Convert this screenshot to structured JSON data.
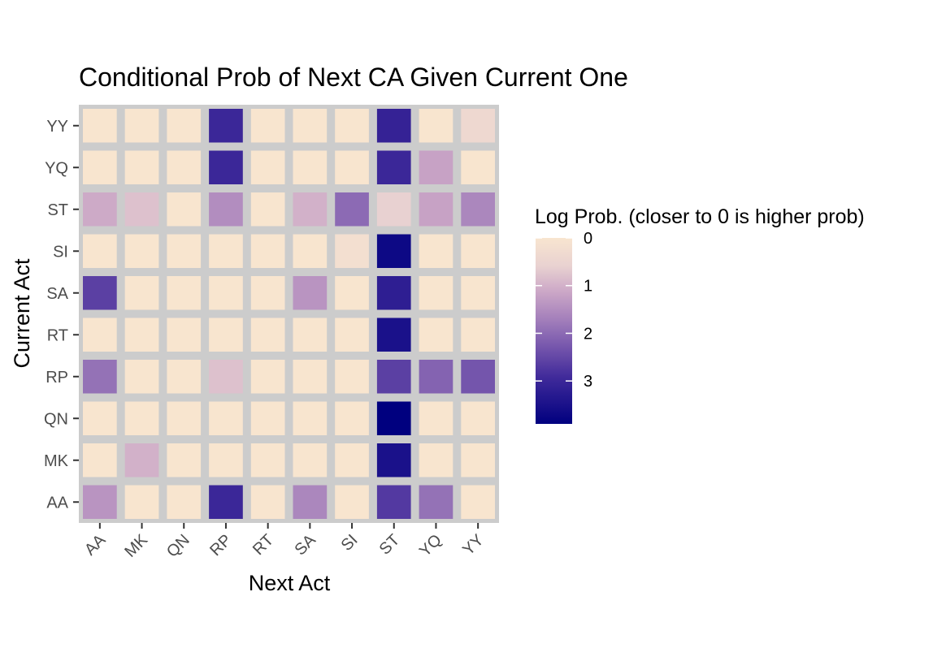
{
  "chart_data": {
    "type": "heatmap",
    "title": "Conditional Prob of Next CA Given Current One",
    "xlabel": "Next Act",
    "ylabel": "Current Act",
    "x_categories": [
      "AA",
      "MK",
      "QN",
      "RP",
      "RT",
      "SA",
      "SI",
      "ST",
      "YQ",
      "YY"
    ],
    "y_categories": [
      "AA",
      "MK",
      "QN",
      "RP",
      "RT",
      "SA",
      "SI",
      "ST",
      "YQ",
      "YY"
    ],
    "values": [
      [
        1.4,
        0.0,
        0.0,
        3.0,
        0.0,
        1.6,
        0.0,
        2.7,
        1.9,
        0.0
      ],
      [
        0.0,
        1.0,
        0.0,
        0.0,
        0.0,
        0.0,
        0.0,
        3.5,
        0.0,
        0.0
      ],
      [
        0.0,
        0.0,
        0.0,
        0.0,
        0.0,
        0.0,
        0.0,
        3.9,
        0.0,
        0.0
      ],
      [
        1.9,
        0.0,
        0.0,
        0.8,
        0.0,
        0.0,
        0.0,
        2.6,
        2.1,
        2.3
      ],
      [
        0.0,
        0.0,
        0.0,
        0.0,
        0.0,
        0.0,
        0.0,
        3.5,
        0.0,
        0.0
      ],
      [
        2.6,
        0.0,
        0.0,
        0.0,
        0.0,
        1.4,
        0.0,
        3.2,
        0.0,
        0.0
      ],
      [
        0.0,
        0.0,
        0.0,
        0.0,
        0.0,
        0.0,
        0.2,
        3.7,
        0.0,
        0.0
      ],
      [
        1.1,
        0.8,
        0.0,
        1.5,
        0.0,
        1.0,
        2.0,
        0.6,
        1.2,
        1.6
      ],
      [
        0.0,
        0.0,
        0.0,
        3.0,
        0.0,
        0.0,
        0.0,
        3.0,
        1.2,
        0.0
      ],
      [
        0.0,
        0.0,
        0.0,
        3.0,
        0.0,
        0.0,
        0.0,
        3.1,
        0.0,
        0.4
      ]
    ],
    "value_range": [
      0,
      3.9
    ],
    "legend": {
      "title": "Log Prob. (closer to 0 is higher prob)",
      "breaks": [
        0,
        1,
        2,
        3
      ],
      "placement": "right"
    },
    "colors": {
      "low": "#f8e5cf",
      "high": "#00007f",
      "panel_background": "#cccccc"
    },
    "grid": false
  }
}
